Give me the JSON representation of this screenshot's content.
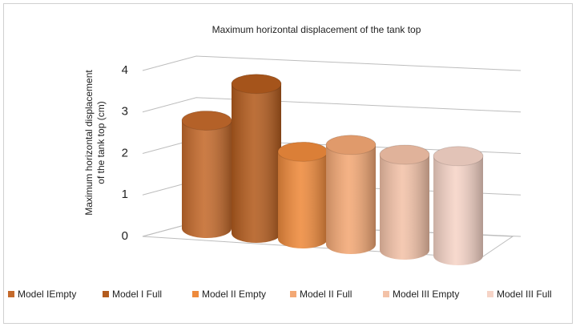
{
  "chart_data": {
    "type": "bar3d",
    "title": "Maximum horizontal displacement of the tank top",
    "y_label": [
      "Maximum horizontal displacement",
      "of the tank top (cm)"
    ],
    "ylim": [
      0,
      4
    ],
    "yticks": [
      0,
      1,
      2,
      3,
      4
    ],
    "grid": true,
    "legend": "bottom",
    "series": [
      {
        "name": "Model IEmpty",
        "color": "#c46a2c",
        "values": [
          2.6
        ]
      },
      {
        "name": "Model I Full",
        "color": "#b35c1e",
        "values": [
          3.6
        ]
      },
      {
        "name": "Model II Empty",
        "color": "#ee8a3c",
        "values": [
          2.1
        ]
      },
      {
        "name": "Model II Full",
        "color": "#f3a875",
        "values": [
          2.4
        ]
      },
      {
        "name": "Model III Empty",
        "color": "#f3c2a8",
        "values": [
          2.3
        ]
      },
      {
        "name": "Model III Full",
        "color": "#f6d4c7",
        "values": [
          2.4
        ]
      }
    ]
  }
}
